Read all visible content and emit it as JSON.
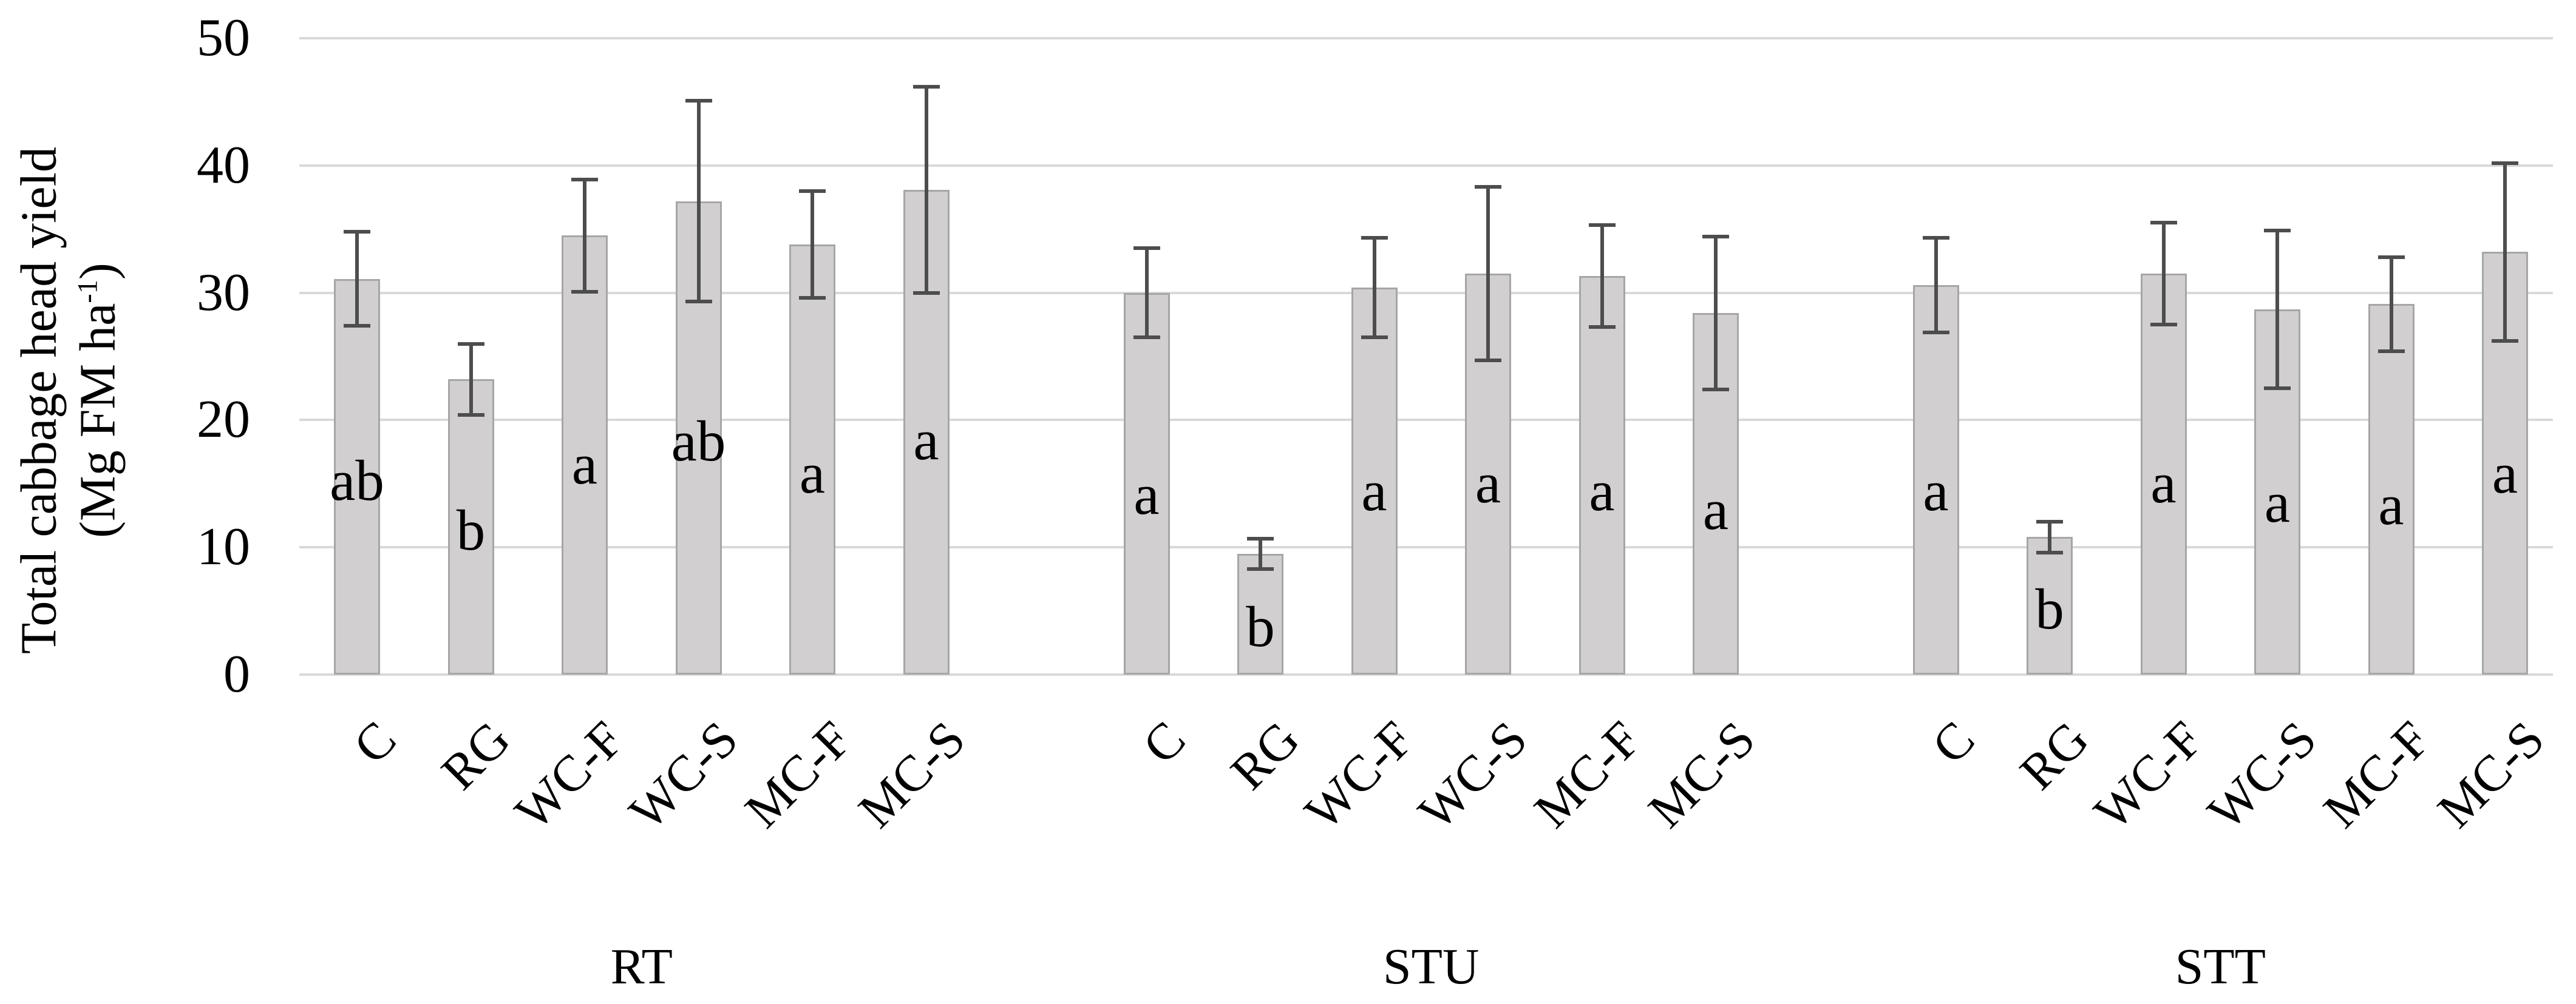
{
  "figure": {
    "background": "#ffffff"
  },
  "chart_data": {
    "type": "bar",
    "title": "",
    "xlabel": "",
    "ylabel": "Total cabbage head yield (Mg FM ha-1)",
    "ylabel_line1": "Total cabbage head yield",
    "ylabel_line2_prefix": "(Mg FM ha",
    "ylabel_line2_sup": "-1",
    "ylabel_line2_suffix": ")",
    "ylim": [
      0,
      50
    ],
    "yticks": [
      0,
      10,
      20,
      30,
      40,
      50
    ],
    "grid": true,
    "legend": "none",
    "categories": [
      "C",
      "RG",
      "WC-F",
      "WC-S",
      "MC-F",
      "MC-S"
    ],
    "bar_fill_color": "#d2cfd0",
    "bar_border_color": "#a6a6a6",
    "error_bar_color": "#4d4d4d",
    "gridline_color": "#d9d9d9",
    "groups": [
      {
        "label": "RT",
        "values": [
          31.1,
          23.2,
          34.5,
          37.2,
          33.8,
          38.1
        ],
        "errors": [
          3.7,
          2.8,
          4.4,
          7.9,
          4.2,
          8.1
        ],
        "letters": [
          "ab",
          "b",
          "a",
          "ab",
          "a",
          "a"
        ],
        "letter_y": [
          15.2,
          11.3,
          16.5,
          18.3,
          15.8,
          18.4
        ]
      },
      {
        "label": "STU",
        "values": [
          30.0,
          9.5,
          30.4,
          31.5,
          31.3,
          28.4
        ],
        "errors": [
          3.5,
          1.2,
          3.9,
          6.8,
          4.0,
          6.0
        ],
        "letters": [
          "a",
          "b",
          "a",
          "a",
          "a",
          "a"
        ],
        "letter_y": [
          14.1,
          3.7,
          14.4,
          15.0,
          14.4,
          12.9
        ]
      },
      {
        "label": "STT",
        "values": [
          30.6,
          10.8,
          31.5,
          28.7,
          29.1,
          33.2
        ],
        "errors": [
          3.7,
          1.2,
          4.0,
          6.2,
          3.7,
          7.0
        ],
        "letters": [
          "a",
          "b",
          "a",
          "a",
          "a",
          "a"
        ],
        "letter_y": [
          14.4,
          5.1,
          15.0,
          13.5,
          13.3,
          15.8
        ]
      }
    ]
  }
}
